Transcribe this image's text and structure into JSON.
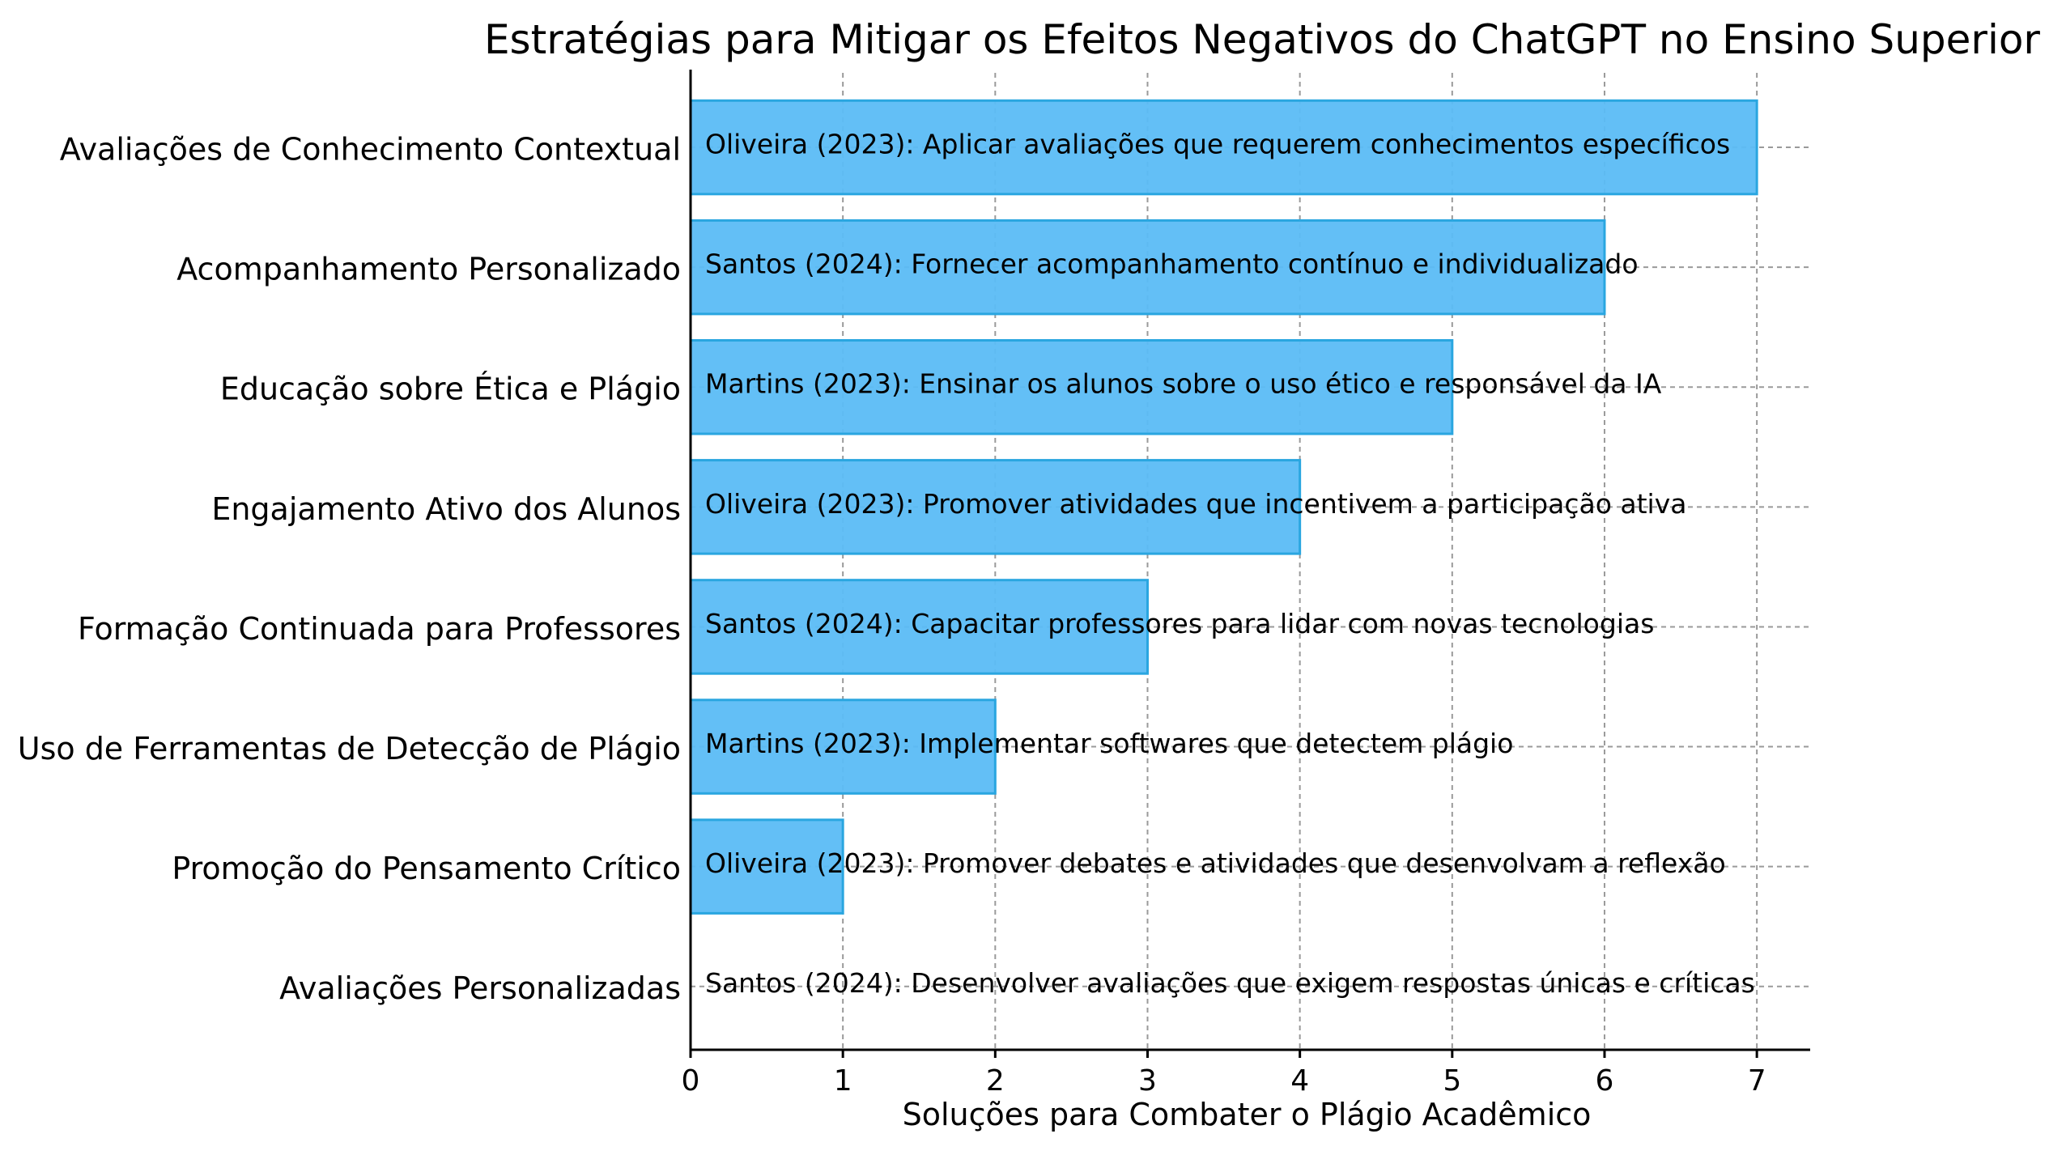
{
  "chart_data": {
    "type": "bar",
    "orientation": "horizontal",
    "title": "Estratégias para Mitigar os Efeitos Negativos do ChatGPT no Ensino Superior",
    "xlabel": "Soluções para Combater o Plágio Acadêmico",
    "ylabel": "",
    "xlim": [
      0,
      7.35
    ],
    "x_ticks": [
      0,
      1,
      2,
      3,
      4,
      5,
      6,
      7
    ],
    "grid": true,
    "categories": [
      "Avaliações de Conhecimento Contextual",
      "Acompanhamento Personalizado",
      "Educação sobre Ética e Plágio",
      "Engajamento Ativo dos Alunos",
      "Formação Continuada para Professores",
      "Uso de Ferramentas de Detecção de Plágio",
      "Promoção do Pensamento Crítico",
      "Avaliações Personalizadas"
    ],
    "values": [
      7,
      6,
      5,
      4,
      3,
      2,
      1,
      0
    ],
    "annotations": [
      "Oliveira (2023): Aplicar avaliações que requerem conhecimentos específicos",
      "Santos (2024): Fornecer acompanhamento contínuo e individualizado",
      "Martins (2023): Ensinar os alunos sobre o uso ético e responsável da IA",
      "Oliveira (2023): Promover atividades que incentivem a participação ativa",
      "Santos (2024): Capacitar professores para lidar com novas tecnologias",
      "Martins (2023): Implementar softwares que detectem plágio",
      "Oliveira (2023): Promover debates e atividades que desenvolvam a reflexão",
      "Santos (2024): Desenvolver avaliações que exigem respostas únicas e críticas"
    ],
    "colors": {
      "bar_fill": "#5bbcf5",
      "bar_edge": "#2aa6e0"
    }
  }
}
